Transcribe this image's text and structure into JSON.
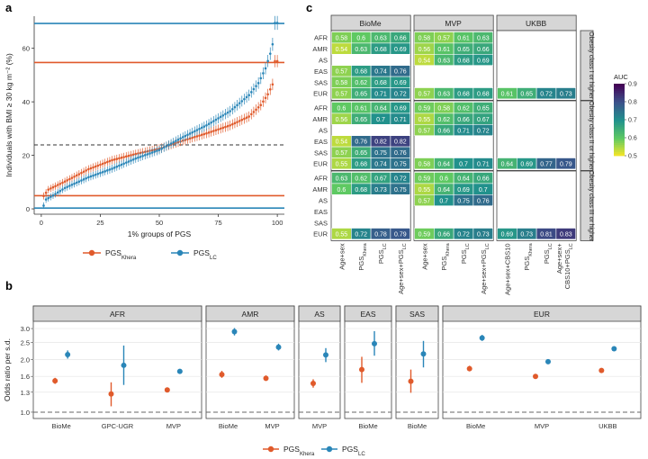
{
  "panels": {
    "a": "a",
    "b": "b",
    "c": "c"
  },
  "colors": {
    "khera": "#e05a2b",
    "lc": "#2a86b8",
    "strip": "#d6d6d6",
    "grid": "#e6e6e6",
    "cell_text": "#ffffff"
  },
  "chart_data": [
    {
      "type": "scatter",
      "name": "a",
      "xlabel": "1% groups of PGS",
      "ylabel": "Individuals with BMI ≥ 30 kg m⁻² (%)",
      "xlim": [
        -3,
        103
      ],
      "ylim": [
        -2,
        72
      ],
      "x_ticks": [
        "0",
        "25",
        "50",
        "75",
        "100"
      ],
      "y_ticks": [
        "0",
        "20",
        "40",
        "60"
      ],
      "hlines": [
        {
          "series": "PGS_LC",
          "y": 69.3
        },
        {
          "series": "PGS_Khera",
          "y": 54.7
        },
        {
          "series": "overall",
          "y": 23.9,
          "dashed": true
        },
        {
          "series": "PGS_Khera",
          "y": 4.9
        },
        {
          "series": "PGS_LC",
          "y": 0.3
        }
      ],
      "series": [
        {
          "name": "PGS_Khera",
          "label_main": "PGS",
          "label_sub": "Khera",
          "anchors": [
            [
              1,
              4.8
            ],
            [
              3,
              7.2
            ],
            [
              10,
              10.2
            ],
            [
              20,
              14.8
            ],
            [
              30,
              18.2
            ],
            [
              40,
              20.5
            ],
            [
              50,
              22.5
            ],
            [
              60,
              25.5
            ],
            [
              70,
              28.2
            ],
            [
              80,
              31.2
            ],
            [
              88,
              34.5
            ],
            [
              93,
              38.8
            ],
            [
              96,
              42.8
            ],
            [
              98,
              46.5
            ],
            [
              99,
              55.2
            ]
          ],
          "err": 1.2
        },
        {
          "name": "PGS_LC",
          "label_main": "PGS",
          "label_sub": "LC",
          "anchors": [
            [
              1,
              1.2
            ],
            [
              2,
              3.5
            ],
            [
              5,
              5.0
            ],
            [
              10,
              7.8
            ],
            [
              20,
              11.8
            ],
            [
              30,
              15.0
            ],
            [
              40,
              18.8
            ],
            [
              50,
              22.0
            ],
            [
              60,
              26.8
            ],
            [
              70,
              31.2
            ],
            [
              80,
              36.5
            ],
            [
              88,
              42.5
            ],
            [
              92,
              47.0
            ],
            [
              95,
              52.5
            ],
            [
              97,
              58.0
            ],
            [
              98,
              61.5
            ],
            [
              99,
              69.5
            ]
          ],
          "err": 1.2
        }
      ]
    },
    {
      "type": "scatter",
      "name": "b",
      "ylabel": "Odds ratio per s.d.",
      "y_ticks": [
        "1.0",
        "1.3",
        "1.6",
        "2.0",
        "2.5",
        "3.0"
      ],
      "y_tick_values": [
        1.0,
        1.3,
        1.6,
        2.0,
        2.5,
        3.0
      ],
      "ylim": [
        0.92,
        3.3
      ],
      "reference_line": 1.0,
      "legend": [
        {
          "series": "PGS_Khera",
          "label_main": "PGS",
          "label_sub": "Khera"
        },
        {
          "series": "PGS_LC",
          "label_main": "PGS",
          "label_sub": "LC"
        }
      ],
      "facets": [
        {
          "title": "AFR",
          "groups": [
            {
              "label": "BioMe",
              "khera": [
                1.51,
                1.45,
                1.57
              ],
              "lc": [
                2.13,
                2.02,
                2.25
              ]
            },
            {
              "label": "GPC-UGR",
              "khera": [
                1.27,
                1.08,
                1.48
              ],
              "lc": [
                1.85,
                1.43,
                2.4
              ]
            },
            {
              "label": "MVP",
              "khera": [
                1.34,
                1.31,
                1.37
              ],
              "lc": [
                1.71,
                1.67,
                1.75
              ]
            }
          ]
        },
        {
          "title": "AMR",
          "groups": [
            {
              "label": "BioMe",
              "khera": [
                1.64,
                1.57,
                1.72
              ],
              "lc": [
                2.88,
                2.74,
                3.02
              ]
            },
            {
              "label": "MVP",
              "khera": [
                1.56,
                1.51,
                1.62
              ],
              "lc": [
                2.35,
                2.25,
                2.46
              ]
            }
          ]
        },
        {
          "title": "AS",
          "groups": [
            {
              "label": "MVP",
              "khera": [
                1.46,
                1.38,
                1.54
              ],
              "lc": [
                2.12,
                1.93,
                2.32
              ]
            }
          ]
        },
        {
          "title": "EAS",
          "groups": [
            {
              "label": "BioMe",
              "khera": [
                1.75,
                1.47,
                2.07
              ],
              "lc": [
                2.46,
                2.1,
                2.9
              ]
            }
          ]
        },
        {
          "title": "SAS",
          "groups": [
            {
              "label": "BioMe",
              "khera": [
                1.5,
                1.29,
                1.75
              ],
              "lc": [
                2.15,
                1.8,
                2.55
              ]
            }
          ]
        },
        {
          "title": "EUR",
          "groups": [
            {
              "label": "BioMe",
              "khera": [
                1.77,
                1.71,
                1.84
              ],
              "lc": [
                2.65,
                2.55,
                2.76
              ]
            },
            {
              "label": "MVP",
              "khera": [
                1.6,
                1.58,
                1.62
              ],
              "lc": [
                1.94,
                1.92,
                1.96
              ]
            },
            {
              "label": "UKBB",
              "khera": [
                1.73,
                1.71,
                1.75
              ],
              "lc": [
                2.3,
                2.28,
                2.32
              ]
            }
          ]
        }
      ]
    },
    {
      "type": "heatmap",
      "name": "c",
      "colorbar": {
        "title": "AUC",
        "min": 0.5,
        "max": 0.9,
        "ticks": [
          "0.5",
          "0.6",
          "0.7",
          "0.8",
          "0.9"
        ]
      },
      "row_labels": [
        "AFR",
        "AMR",
        "AS",
        "EAS",
        "SAS",
        "EUR"
      ],
      "columns": [
        {
          "facet": "BioMe",
          "labels": [
            [
              "Age+sex"
            ],
            [
              "PGS",
              "Khera"
            ],
            [
              "PGS",
              "LC"
            ],
            [
              "Age+sex+PGS",
              "LC"
            ]
          ]
        },
        {
          "facet": "MVP",
          "labels": [
            [
              "Age+sex"
            ],
            [
              "PGS",
              "Khera"
            ],
            [
              "PGS",
              "LC"
            ],
            [
              "Age+sex+PGS",
              "LC"
            ]
          ]
        },
        {
          "facet": "UKBB",
          "labels": [
            [
              "Age+sex+CBS10"
            ],
            [
              "PGS",
              "Khera"
            ],
            [
              "PGS",
              "LC"
            ],
            [
              "Age+sex+",
              "CBS10+PGS",
              "LC"
            ]
          ]
        }
      ],
      "row_facets": [
        "Obesity class I or higher",
        "Obesity class II or higher",
        "Obesity class III or higher"
      ],
      "values": [
        [
          [
            [
              0.58,
              0.6,
              0.63,
              0.66
            ],
            [
              0.58,
              0.57,
              0.61,
              0.63
            ],
            null
          ],
          [
            [
              0.54,
              0.63,
              0.68,
              0.69
            ],
            [
              0.56,
              0.61,
              0.65,
              0.66
            ],
            null
          ],
          [
            null,
            [
              0.54,
              0.63,
              0.68,
              0.69
            ],
            null
          ],
          [
            [
              0.57,
              0.68,
              0.74,
              0.76
            ],
            null,
            null
          ],
          [
            [
              0.58,
              0.62,
              0.68,
              0.69
            ],
            null,
            null
          ],
          [
            [
              0.57,
              0.65,
              0.71,
              0.72
            ],
            [
              0.57,
              0.63,
              0.68,
              0.68
            ],
            [
              0.61,
              0.65,
              0.72,
              0.73
            ]
          ]
        ],
        [
          [
            [
              0.6,
              0.61,
              0.64,
              0.69
            ],
            [
              0.59,
              0.58,
              0.62,
              0.65
            ],
            null
          ],
          [
            [
              0.56,
              0.65,
              0.7,
              0.71
            ],
            [
              0.55,
              0.62,
              0.66,
              0.67
            ],
            null
          ],
          [
            null,
            [
              0.57,
              0.66,
              0.71,
              0.72
            ],
            null
          ],
          [
            [
              0.54,
              0.76,
              0.82,
              0.82
            ],
            null,
            null
          ],
          [
            [
              0.57,
              0.65,
              0.75,
              0.76
            ],
            null,
            null
          ],
          [
            [
              0.55,
              0.68,
              0.74,
              0.75
            ],
            [
              0.58,
              0.64,
              0.7,
              0.71
            ],
            [
              0.64,
              0.69,
              0.77,
              0.79
            ]
          ]
        ],
        [
          [
            [
              0.63,
              0.62,
              0.67,
              0.72
            ],
            [
              0.59,
              0.6,
              0.64,
              0.66
            ],
            null
          ],
          [
            [
              0.6,
              0.68,
              0.73,
              0.75
            ],
            [
              0.55,
              0.64,
              0.69,
              0.7
            ],
            null
          ],
          [
            null,
            [
              0.57,
              0.7,
              0.75,
              0.76
            ],
            null
          ],
          [
            null,
            null,
            null
          ],
          [
            null,
            null,
            null
          ],
          [
            [
              0.55,
              0.72,
              0.78,
              0.79
            ],
            [
              0.59,
              0.66,
              0.72,
              0.73
            ],
            [
              0.69,
              0.73,
              0.81,
              0.83
            ]
          ]
        ]
      ]
    }
  ]
}
